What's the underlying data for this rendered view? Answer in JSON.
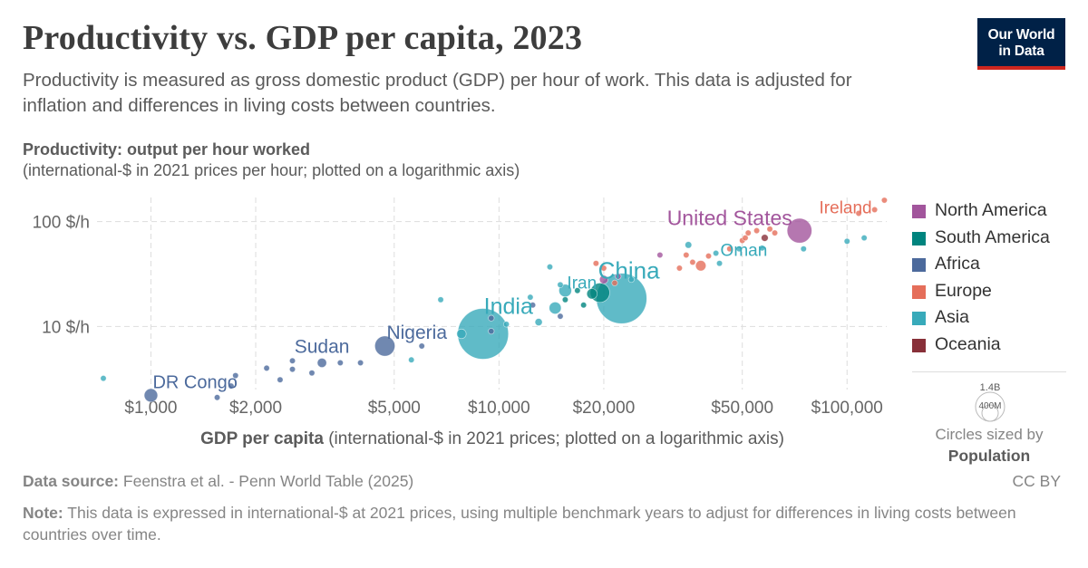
{
  "title": "Productivity vs. GDP per capita, 2023",
  "subtitle": "Productivity is measured as gross domestic product (GDP) per hour of work. This data is adjusted for inflation and differences in living costs between countries.",
  "logo": {
    "line1": "Our World",
    "line2": "in Data"
  },
  "footer": {
    "source_label": "Data source:",
    "source_text": "Feenstra et al. - Penn World Table (2025)",
    "license": "CC BY",
    "note_label": "Note:",
    "note_text": "This data is expressed in international-$ at 2021 prices, using multiple benchmark years to adjust for differences in living costs between countries over time."
  },
  "size_legend": {
    "big": "1.4B",
    "small": "400M",
    "line1": "Circles sized by",
    "line2": "Population"
  },
  "chart_data": {
    "type": "scatter",
    "ylabel": "Productivity: output per hour worked",
    "ylabel_unit": "(international-$ in 2021 prices per hour; plotted on a logarithmic axis)",
    "xlabel": "GDP per capita",
    "xlabel_unit": "(international-$ in 2021 prices; plotted on a logarithmic axis)",
    "x_scale": "log",
    "y_scale": "log",
    "xlim": [
      700,
      130000
    ],
    "ylim": [
      2.5,
      170
    ],
    "x_ticks": [
      {
        "value": 1000,
        "label": "$1,000"
      },
      {
        "value": 2000,
        "label": "$2,000"
      },
      {
        "value": 5000,
        "label": "$5,000"
      },
      {
        "value": 10000,
        "label": "$10,000"
      },
      {
        "value": 20000,
        "label": "$20,000"
      },
      {
        "value": 50000,
        "label": "$50,000"
      },
      {
        "value": 100000,
        "label": "$100,000"
      }
    ],
    "y_ticks": [
      {
        "value": 10,
        "label": "10 $/h"
      },
      {
        "value": 100,
        "label": "100 $/h"
      }
    ],
    "grid": true,
    "legend_position": "right",
    "regions": [
      {
        "name": "North America",
        "color": "#a2559c"
      },
      {
        "name": "South America",
        "color": "#00847e"
      },
      {
        "name": "Africa",
        "color": "#4c6a9c"
      },
      {
        "name": "Europe",
        "color": "#e56e5a"
      },
      {
        "name": "Asia",
        "color": "#38aaba"
      },
      {
        "name": "Oceania",
        "color": "#883039"
      }
    ],
    "points": [
      {
        "label": "United States",
        "region": "North America",
        "x": 73000,
        "y": 82,
        "pop": 340
      },
      {
        "label": "China",
        "region": "Asia",
        "x": 22500,
        "y": 18.5,
        "pop": 1410
      },
      {
        "label": "India",
        "region": "Asia",
        "x": 9000,
        "y": 8.5,
        "pop": 1430
      },
      {
        "label": "Nigeria",
        "region": "Africa",
        "x": 4700,
        "y": 6.5,
        "pop": 225
      },
      {
        "label": "Sudan",
        "region": "Africa",
        "x": 3100,
        "y": 4.5,
        "pop": 48
      },
      {
        "label": "DR Congo",
        "region": "Africa",
        "x": 1000,
        "y": 2.2,
        "pop": 100
      },
      {
        "label": "Iran",
        "region": "Asia",
        "x": 15500,
        "y": 22,
        "pop": 89
      },
      {
        "label": "Oman",
        "region": "Asia",
        "x": 43000,
        "y": 40,
        "pop": 5
      },
      {
        "label": "Ireland",
        "region": "Europe",
        "x": 120000,
        "y": 130,
        "pop": 5
      },
      {
        "label": "",
        "region": "Asia",
        "x": 730,
        "y": 3.2,
        "pop": 5
      },
      {
        "label": "",
        "region": "Africa",
        "x": 1550,
        "y": 2.1,
        "pop": 5
      },
      {
        "label": "",
        "region": "Africa",
        "x": 1700,
        "y": 2.7,
        "pop": 5
      },
      {
        "label": "",
        "region": "Africa",
        "x": 1750,
        "y": 3.4,
        "pop": 5
      },
      {
        "label": "",
        "region": "Africa",
        "x": 2150,
        "y": 4.0,
        "pop": 5
      },
      {
        "label": "",
        "region": "Africa",
        "x": 2350,
        "y": 3.1,
        "pop": 5
      },
      {
        "label": "",
        "region": "Africa",
        "x": 2550,
        "y": 3.9,
        "pop": 8
      },
      {
        "label": "",
        "region": "Africa",
        "x": 2550,
        "y": 4.7,
        "pop": 5
      },
      {
        "label": "",
        "region": "Africa",
        "x": 2900,
        "y": 3.6,
        "pop": 8
      },
      {
        "label": "",
        "region": "Africa",
        "x": 3500,
        "y": 4.5,
        "pop": 10
      },
      {
        "label": "",
        "region": "Africa",
        "x": 4000,
        "y": 4.5,
        "pop": 5
      },
      {
        "label": "",
        "region": "Asia",
        "x": 5600,
        "y": 4.8,
        "pop": 5
      },
      {
        "label": "",
        "region": "Africa",
        "x": 6000,
        "y": 6.5,
        "pop": 5
      },
      {
        "label": "",
        "region": "Asia",
        "x": 6800,
        "y": 18,
        "pop": 5
      },
      {
        "label": "",
        "region": "Asia",
        "x": 7800,
        "y": 8.5,
        "pop": 50
      },
      {
        "label": "",
        "region": "Africa",
        "x": 9500,
        "y": 9,
        "pop": 5
      },
      {
        "label": "",
        "region": "Africa",
        "x": 9500,
        "y": 12,
        "pop": 5
      },
      {
        "label": "",
        "region": "Asia",
        "x": 10500,
        "y": 10.5,
        "pop": 5
      },
      {
        "label": "",
        "region": "Asia",
        "x": 12300,
        "y": 19,
        "pop": 5
      },
      {
        "label": "",
        "region": "Africa",
        "x": 12500,
        "y": 16,
        "pop": 5
      },
      {
        "label": "",
        "region": "Asia",
        "x": 13000,
        "y": 11,
        "pop": 30
      },
      {
        "label": "",
        "region": "Asia",
        "x": 14000,
        "y": 37,
        "pop": 5
      },
      {
        "label": "",
        "region": "Asia",
        "x": 14500,
        "y": 15,
        "pop": 80
      },
      {
        "label": "",
        "region": "Africa",
        "x": 15000,
        "y": 12.5,
        "pop": 5
      },
      {
        "label": "",
        "region": "Asia",
        "x": 15000,
        "y": 25,
        "pop": 5
      },
      {
        "label": "",
        "region": "South America",
        "x": 15500,
        "y": 18,
        "pop": 5
      },
      {
        "label": "",
        "region": "South America",
        "x": 16800,
        "y": 22,
        "pop": 5
      },
      {
        "label": "",
        "region": "South America",
        "x": 17500,
        "y": 16,
        "pop": 5
      },
      {
        "label": "",
        "region": "South America",
        "x": 18500,
        "y": 20.5,
        "pop": 60
      },
      {
        "label": "",
        "region": "Europe",
        "x": 19000,
        "y": 40,
        "pop": 5
      },
      {
        "label": "",
        "region": "South America",
        "x": 19500,
        "y": 21,
        "pop": 210
      },
      {
        "label": "",
        "region": "North America",
        "x": 20000,
        "y": 28,
        "pop": 40
      },
      {
        "label": "",
        "region": "Europe",
        "x": 20000,
        "y": 36,
        "pop": 5
      },
      {
        "label": "",
        "region": "Europe",
        "x": 21500,
        "y": 26,
        "pop": 5
      },
      {
        "label": "",
        "region": "North America",
        "x": 22000,
        "y": 30,
        "pop": 5
      },
      {
        "label": "",
        "region": "Asia",
        "x": 24000,
        "y": 28,
        "pop": 5
      },
      {
        "label": "",
        "region": "North America",
        "x": 29000,
        "y": 48,
        "pop": 5
      },
      {
        "label": "",
        "region": "Europe",
        "x": 33000,
        "y": 36,
        "pop": 5
      },
      {
        "label": "",
        "region": "Europe",
        "x": 34500,
        "y": 48,
        "pop": 5
      },
      {
        "label": "",
        "region": "Asia",
        "x": 35000,
        "y": 60,
        "pop": 25
      },
      {
        "label": "",
        "region": "Europe",
        "x": 36000,
        "y": 41,
        "pop": 5
      },
      {
        "label": "",
        "region": "Europe",
        "x": 38000,
        "y": 38,
        "pop": 60
      },
      {
        "label": "",
        "region": "Europe",
        "x": 40000,
        "y": 47,
        "pop": 5
      },
      {
        "label": "",
        "region": "Asia",
        "x": 42000,
        "y": 50,
        "pop": 5
      },
      {
        "label": "",
        "region": "Europe",
        "x": 46000,
        "y": 55,
        "pop": 5
      },
      {
        "label": "",
        "region": "Asia",
        "x": 49000,
        "y": 55,
        "pop": 5
      },
      {
        "label": "",
        "region": "Europe",
        "x": 50000,
        "y": 66,
        "pop": 5
      },
      {
        "label": "",
        "region": "Europe",
        "x": 51000,
        "y": 70,
        "pop": 5
      },
      {
        "label": "",
        "region": "Europe",
        "x": 52000,
        "y": 78,
        "pop": 5
      },
      {
        "label": "",
        "region": "Europe",
        "x": 55000,
        "y": 82,
        "pop": 5
      },
      {
        "label": "",
        "region": "Asia",
        "x": 57000,
        "y": 56,
        "pop": 5
      },
      {
        "label": "",
        "region": "Oceania",
        "x": 58000,
        "y": 70,
        "pop": 27
      },
      {
        "label": "",
        "region": "Europe",
        "x": 60000,
        "y": 85,
        "pop": 5
      },
      {
        "label": "",
        "region": "Europe",
        "x": 62000,
        "y": 78,
        "pop": 5
      },
      {
        "label": "",
        "region": "Asia",
        "x": 75000,
        "y": 55,
        "pop": 5
      },
      {
        "label": "",
        "region": "Asia",
        "x": 100000,
        "y": 65,
        "pop": 5
      },
      {
        "label": "",
        "region": "Europe",
        "x": 108000,
        "y": 120,
        "pop": 5
      },
      {
        "label": "",
        "region": "Asia",
        "x": 112000,
        "y": 70,
        "pop": 5
      },
      {
        "label": "",
        "region": "Europe",
        "x": 128000,
        "y": 160,
        "pop": 5
      }
    ]
  }
}
